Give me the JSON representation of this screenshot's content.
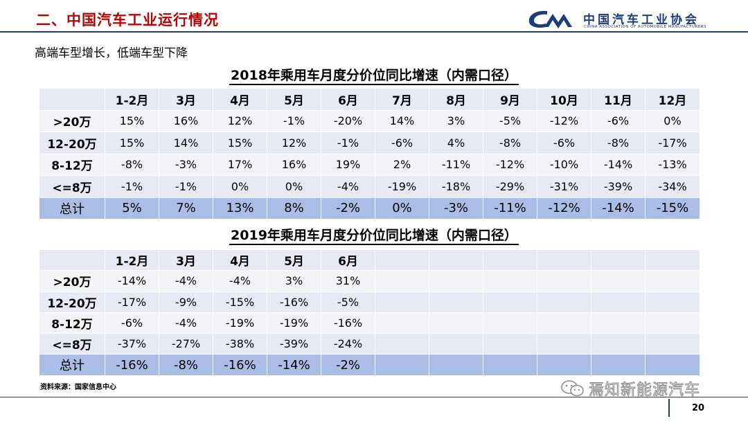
{
  "header": {
    "title": "二、中国汽车工业运行情况",
    "org_name": "中国汽车工业协会",
    "org_name_en": "CHINA ASSOCIATION OF AUTOMOBILE MANUFACTURERS"
  },
  "subtitle": "高端车型增长，低端车型下降",
  "table_2018": {
    "title": "2018年乘用车月度分价位同比增速（内需口径）",
    "columns": [
      "1-2月",
      "3月",
      "4月",
      "5月",
      "6月",
      "7月",
      "8月",
      "9月",
      "10月",
      "11月",
      "12月"
    ],
    "rows": [
      {
        "label": ">20万",
        "values": [
          "15%",
          "16%",
          "12%",
          "-1%",
          "-20%",
          "14%",
          "3%",
          "-5%",
          "-12%",
          "-6%",
          "0%"
        ]
      },
      {
        "label": "12-20万",
        "values": [
          "15%",
          "14%",
          "15%",
          "12%",
          "-1%",
          "-6%",
          "4%",
          "-8%",
          "-6%",
          "-8%",
          "-17%"
        ]
      },
      {
        "label": "8-12万",
        "values": [
          "-8%",
          "-3%",
          "17%",
          "16%",
          "19%",
          "2%",
          "-11%",
          "-12%",
          "-10%",
          "-14%",
          "-13%"
        ]
      },
      {
        "label": "<=8万",
        "values": [
          "-1%",
          "-1%",
          "0%",
          "0%",
          "-4%",
          "-19%",
          "-18%",
          "-29%",
          "-31%",
          "-39%",
          "-34%"
        ]
      },
      {
        "label": "总计",
        "values": [
          "5%",
          "7%",
          "13%",
          "8%",
          "-2%",
          "0%",
          "-3%",
          "-11%",
          "-12%",
          "-14%",
          "-15%"
        ]
      }
    ]
  },
  "table_2019": {
    "title": "2019年乘用车月度分价位同比增速（内需口径）",
    "columns": [
      "1-2月",
      "3月",
      "4月",
      "5月",
      "6月",
      "",
      "",
      "",
      "",
      "",
      ""
    ],
    "rows": [
      {
        "label": ">20万",
        "values": [
          "-14%",
          "-4%",
          "-4%",
          "3%",
          "31%",
          "",
          "",
          "",
          "",
          "",
          ""
        ]
      },
      {
        "label": "12-20万",
        "values": [
          "-17%",
          "-9%",
          "-15%",
          "-16%",
          "-5%",
          "",
          "",
          "",
          "",
          "",
          ""
        ]
      },
      {
        "label": "8-12万",
        "values": [
          "-6%",
          "-4%",
          "-19%",
          "-19%",
          "-16%",
          "",
          "",
          "",
          "",
          "",
          ""
        ]
      },
      {
        "label": "<=8万",
        "values": [
          "-37%",
          "-27%",
          "-38%",
          "-39%",
          "-24%",
          "",
          "",
          "",
          "",
          "",
          ""
        ]
      },
      {
        "label": "总计",
        "values": [
          "-16%",
          "-8%",
          "-16%",
          "-14%",
          "-2%",
          "",
          "",
          "",
          "",
          "",
          ""
        ]
      }
    ]
  },
  "source": "资料来源：国家信息中心",
  "watermark": "焉知新能源汽车",
  "page_number": "20",
  "icons": {
    "logo": "caam-logo-icon",
    "wechat": "wechat-icon"
  },
  "colors": {
    "title_red": "#c00000",
    "navy": "#1f3b7a",
    "total_row": "#a9bde6"
  }
}
